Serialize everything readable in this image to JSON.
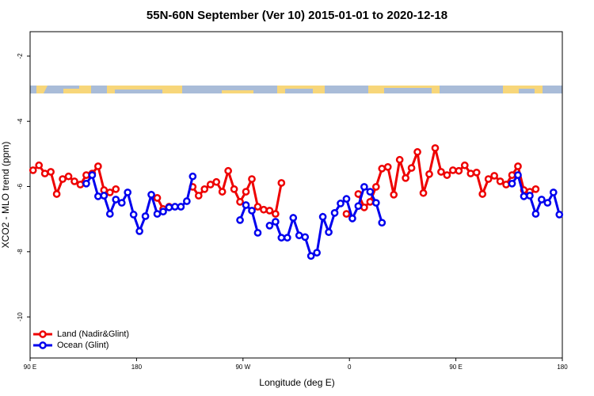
{
  "chart_data": {
    "type": "line",
    "title": "55N-60N September (Ver 10)   2015-01-01 to 2020-12-18",
    "xlabel": "Longitude (deg E)",
    "ylabel": "XCO2 - MLO trend (ppm)",
    "x": [
      92.5,
      97.5,
      102.5,
      107.5,
      112.5,
      117.5,
      122.5,
      127.5,
      132.5,
      137.5,
      142.5,
      147.5,
      152.5,
      157.5,
      162.5,
      167.5,
      172.5,
      177.5,
      182.5,
      187.5,
      192.5,
      197.5,
      202.5,
      207.5,
      212.5,
      217.5,
      222.5,
      227.5,
      232.5,
      237.5,
      242.5,
      247.5,
      252.5,
      257.5,
      262.5,
      267.5,
      272.5,
      277.5,
      282.5,
      287.5,
      292.5,
      297.5,
      302.5,
      307.5,
      312.5,
      317.5,
      322.5,
      327.5,
      332.5,
      337.5,
      342.5,
      347.5,
      352.5,
      357.5,
      362.5,
      367.5,
      372.5,
      377.5,
      382.5,
      387.5,
      392.5,
      397.5,
      402.5,
      407.5,
      412.5,
      417.5,
      422.5,
      427.5,
      432.5,
      437.5,
      442.5,
      447.5,
      452.5,
      457.5,
      462.5,
      467.5,
      472.5,
      477.5,
      482.5,
      487.5,
      492.5,
      497.5,
      502.5,
      507.5,
      512.5,
      517.5,
      522.5,
      527.5,
      532.5,
      537.5
    ],
    "series": [
      {
        "name": "Land (Nadir&Glint)",
        "color": "#ee0000",
        "values": [
          -5.5,
          -5.35,
          -5.6,
          -5.55,
          -6.23,
          -5.77,
          -5.69,
          -5.84,
          -5.94,
          -5.65,
          -5.6,
          -5.38,
          -6.11,
          -6.18,
          -6.08,
          null,
          null,
          null,
          null,
          null,
          null,
          -6.35,
          -6.69,
          -6.62,
          null,
          null,
          null,
          -6.01,
          -6.28,
          -6.08,
          -5.94,
          -5.86,
          -6.16,
          -5.52,
          -6.08,
          -6.47,
          -6.16,
          -5.77,
          -6.62,
          -6.71,
          -6.74,
          -6.84,
          -5.89,
          null,
          null,
          null,
          null,
          null,
          null,
          null,
          null,
          null,
          null,
          -6.84,
          null,
          -6.23,
          -6.64,
          -6.47,
          -6.01,
          -5.45,
          -5.4,
          -6.25,
          -5.18,
          -5.74,
          -5.43,
          -4.94,
          -6.2,
          -5.62,
          -4.82,
          -5.55,
          -5.65,
          -5.5,
          -5.52,
          -5.35,
          -5.6,
          -5.57,
          -6.23,
          -5.77,
          -5.67,
          -5.84,
          -5.94,
          -5.65,
          -5.38,
          -6.11,
          -6.16,
          -6.08,
          null,
          null,
          null,
          null
        ]
      },
      {
        "name": "Ocean (Glint)",
        "color": "#0000ee",
        "values": [
          null,
          null,
          null,
          null,
          null,
          null,
          null,
          null,
          null,
          -5.91,
          -5.65,
          -6.3,
          -6.28,
          -6.84,
          -6.4,
          -6.5,
          -6.18,
          -6.86,
          -7.37,
          -6.91,
          -6.25,
          -6.84,
          -6.77,
          -6.64,
          -6.62,
          -6.62,
          -6.45,
          -5.69,
          null,
          null,
          null,
          null,
          null,
          null,
          null,
          -7.03,
          -6.57,
          -6.74,
          -7.42,
          null,
          -7.2,
          -7.08,
          -7.57,
          -7.57,
          -6.96,
          -7.5,
          -7.55,
          -8.13,
          -8.03,
          -6.93,
          -7.4,
          -6.81,
          -6.52,
          -6.38,
          -6.98,
          -6.6,
          -6.01,
          -6.16,
          -6.5,
          -7.11,
          null,
          null,
          null,
          null,
          null,
          null,
          null,
          null,
          null,
          null,
          null,
          null,
          null,
          null,
          null,
          null,
          null,
          null,
          null,
          null,
          null,
          -5.91,
          -5.65,
          -6.3,
          -6.28,
          -6.84,
          -6.4,
          -6.5,
          -6.18,
          -6.86
        ]
      }
    ],
    "xlim": [
      90,
      540
    ],
    "xticks": [
      {
        "value": 90,
        "label": "90 E"
      },
      180,
      {
        "value": 270,
        "label": "90 W"
      },
      {
        "value": 360,
        "label": "0"
      },
      {
        "value": 450,
        "label": "90 E"
      },
      {
        "value": 540,
        "label": "180"
      }
    ],
    "ylim": [
      -11.26,
      -1.25
    ],
    "yticks": [
      -10,
      -8,
      -6,
      -4,
      -2
    ],
    "legend": "lower left"
  }
}
